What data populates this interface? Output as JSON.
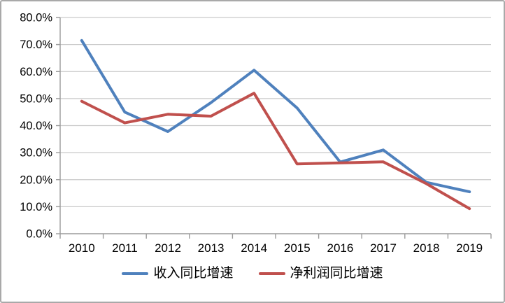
{
  "chart_data": {
    "type": "line",
    "title": "",
    "xlabel": "",
    "ylabel": "",
    "categories": [
      "2010",
      "2011",
      "2012",
      "2013",
      "2014",
      "2015",
      "2016",
      "2017",
      "2018",
      "2019"
    ],
    "series": [
      {
        "name": "收入同比增速",
        "color": "#4F81BD",
        "values": [
          71.5,
          45.0,
          37.8,
          48.5,
          60.5,
          46.5,
          26.5,
          31.0,
          19.0,
          15.5
        ]
      },
      {
        "name": "净利润同比增速",
        "color": "#C0504D",
        "values": [
          49.0,
          41.0,
          44.2,
          43.5,
          52.0,
          25.8,
          26.2,
          26.6,
          18.5,
          9.3
        ]
      }
    ],
    "ylim": [
      0,
      80
    ],
    "y_tick_step": 10,
    "y_tick_labels": [
      "0.0%",
      "10.0%",
      "20.0%",
      "30.0%",
      "40.0%",
      "50.0%",
      "60.0%",
      "70.0%",
      "80.0%"
    ],
    "grid": true,
    "legend_position": "bottom"
  },
  "style": {
    "axis_color": "#9b9b9b",
    "gridline_color": "#c9c9c9",
    "tick_label_color": "#000000",
    "background": "#ffffff",
    "line_width": 4
  }
}
